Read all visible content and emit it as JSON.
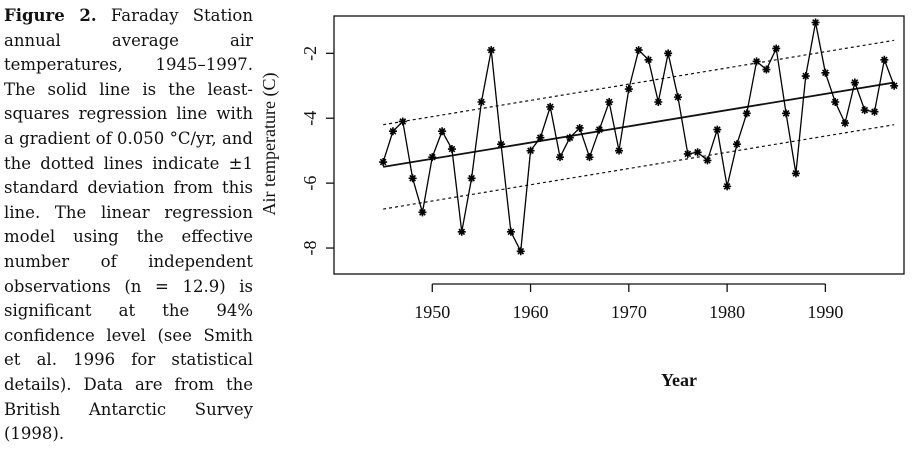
{
  "caption_label": "Figure 2.",
  "caption": "Faraday Station annual average air temperatures, 1945–1997. The solid line is the least-squares regression line with a gradient of 0.050 °C/yr, and the dotted lines indicate ±1 standard deviation from this line. The linear regression model using the effective number of independent observations (n = 12.9) is significant at the 94% confidence level (see Smith et al. 1996 for statistical details). Data are from the British Antarctic Survey (1998).",
  "chart_data": {
    "type": "line",
    "x_label": "Year",
    "y_label": "Air temperature (C)",
    "x": [
      1945,
      1946,
      1947,
      1948,
      1949,
      1950,
      1951,
      1952,
      1953,
      1954,
      1955,
      1956,
      1957,
      1958,
      1959,
      1960,
      1961,
      1962,
      1963,
      1964,
      1965,
      1966,
      1967,
      1968,
      1969,
      1970,
      1971,
      1972,
      1973,
      1974,
      1975,
      1976,
      1977,
      1978,
      1979,
      1980,
      1981,
      1982,
      1983,
      1984,
      1985,
      1986,
      1987,
      1988,
      1989,
      1990,
      1991,
      1992,
      1993,
      1994,
      1995,
      1996,
      1997
    ],
    "series": [
      {
        "name": "Annual average",
        "color": "#000000",
        "values": [
          -5.35,
          -4.4,
          -4.1,
          -5.85,
          -6.9,
          -5.2,
          -4.4,
          -4.95,
          -7.5,
          -5.85,
          -3.5,
          -1.9,
          -4.8,
          -7.5,
          -8.1,
          -5.0,
          -4.6,
          -3.65,
          -5.2,
          -4.6,
          -4.3,
          -5.2,
          -4.35,
          -3.5,
          -5.0,
          -3.1,
          -1.9,
          -2.2,
          -3.5,
          -2.0,
          -3.35,
          -5.1,
          -5.05,
          -5.3,
          -4.35,
          -6.1,
          -4.8,
          -3.85,
          -2.25,
          -2.5,
          -1.85,
          -3.85,
          -5.7,
          -2.7,
          -1.05,
          -2.6,
          -3.5,
          -4.15,
          -2.9,
          -3.75,
          -3.8,
          -2.2,
          -3.0
        ]
      }
    ],
    "trend": {
      "x": [
        1945,
        1997
      ],
      "values": [
        -5.5,
        -2.9
      ],
      "upper": [
        -4.2,
        -1.6
      ],
      "lower": [
        -6.8,
        -4.2
      ]
    },
    "xlim": [
      1940,
      1998
    ],
    "xticks": [
      1950,
      1960,
      1970,
      1980,
      1990
    ],
    "ylim": [
      -8.8,
      -0.85
    ],
    "yticks": [
      -8,
      -6,
      -4,
      -2
    ]
  }
}
